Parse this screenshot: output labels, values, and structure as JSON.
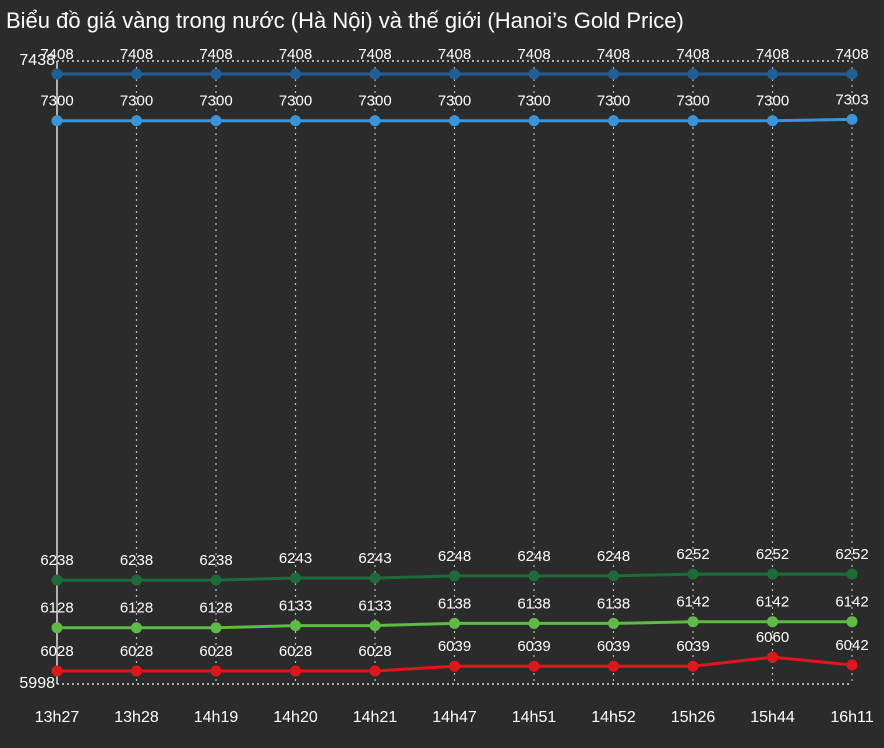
{
  "chart_data": {
    "type": "line",
    "title": "Biểu đồ giá vàng trong nước (Hà Nội) và thế giới (Hanoi’s Gold Price)",
    "categories": [
      "13h27",
      "13h28",
      "14h19",
      "14h20",
      "14h21",
      "14h47",
      "14h51",
      "14h52",
      "15h26",
      "15h44",
      "16h11"
    ],
    "series": [
      {
        "color": "#1f5f94",
        "values": [
          7408,
          7408,
          7408,
          7408,
          7408,
          7408,
          7408,
          7408,
          7408,
          7408,
          7408
        ]
      },
      {
        "color": "#3a95d8",
        "values": [
          7300,
          7300,
          7300,
          7300,
          7300,
          7300,
          7300,
          7300,
          7300,
          7300,
          7303
        ]
      },
      {
        "color": "#1d6b38",
        "values": [
          6238,
          6238,
          6238,
          6243,
          6243,
          6248,
          6248,
          6248,
          6252,
          6252,
          6252
        ]
      },
      {
        "color": "#5fbb48",
        "values": [
          6128,
          6128,
          6128,
          6133,
          6133,
          6138,
          6138,
          6138,
          6142,
          6142,
          6142
        ]
      },
      {
        "color": "#e0161b",
        "values": [
          6028,
          6028,
          6028,
          6028,
          6028,
          6039,
          6039,
          6039,
          6039,
          6060,
          6042
        ]
      }
    ],
    "ylim": [
      5998,
      7438
    ],
    "yticks": [
      5998,
      7438
    ],
    "grid": true
  }
}
